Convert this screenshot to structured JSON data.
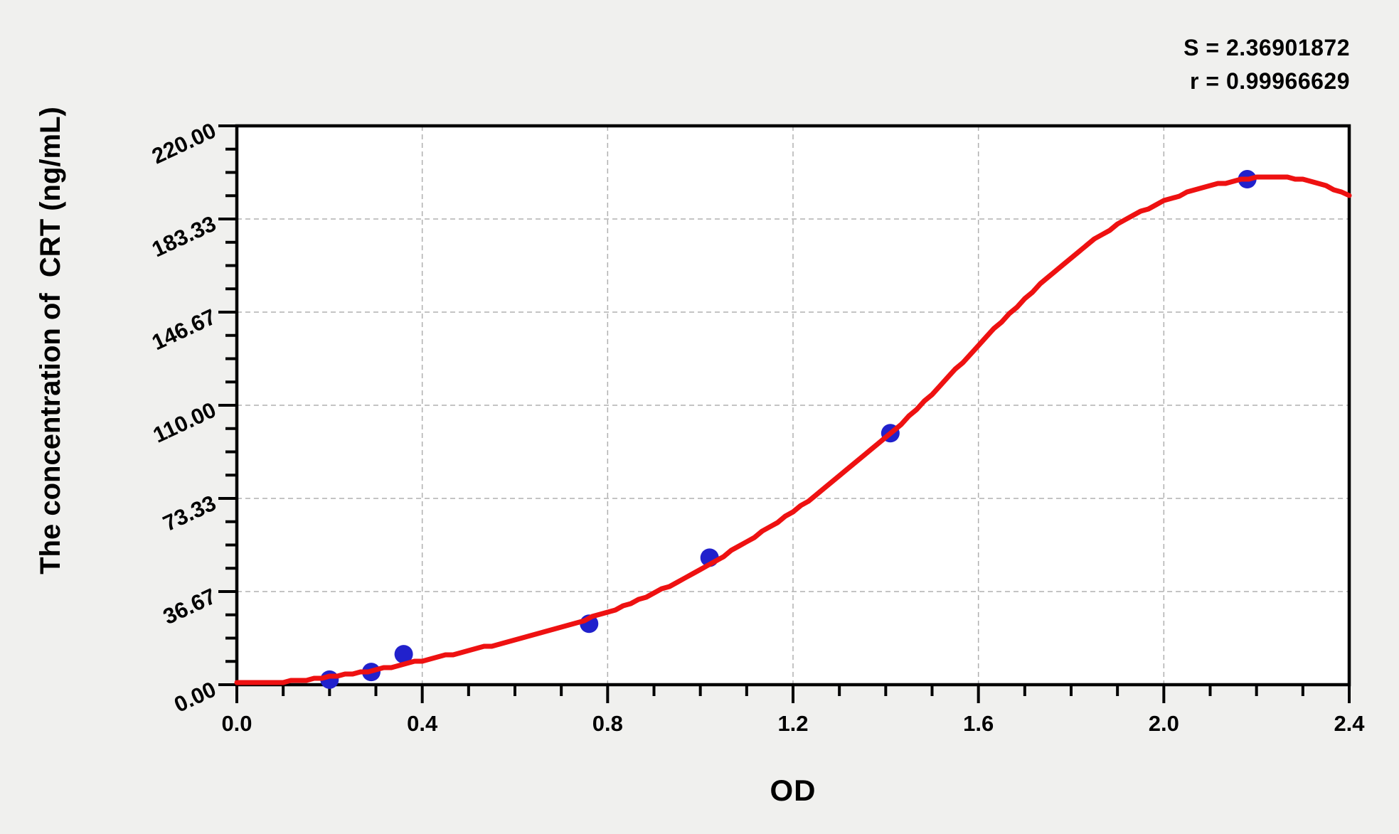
{
  "page": {
    "background_color": "#f0f0ee",
    "plot_background_color": "#ffffff"
  },
  "stats": {
    "s_line": "S = 2.36901872",
    "r_line": "r = 0.99966629"
  },
  "chart_data": {
    "type": "scatter",
    "title": "",
    "xlabel": "OD",
    "ylabel": "The concentration of  CRT (ng/mL)",
    "xlim": [
      0.0,
      2.4
    ],
    "ylim": [
      0.0,
      220.0
    ],
    "x_major_ticks": [
      0.0,
      0.4,
      0.8,
      1.2,
      1.6,
      2.0,
      2.4
    ],
    "x_tick_labels": [
      "0.0",
      "0.4",
      "0.8",
      "1.2",
      "1.6",
      "2.0",
      "2.4"
    ],
    "x_minor_per_major": 3,
    "y_major_ticks": [
      0.0,
      36.67,
      73.33,
      110.0,
      146.67,
      183.33,
      220.0
    ],
    "y_tick_labels": [
      "0.00",
      "36.67",
      "73.33",
      "110.00",
      "146.67",
      "183.33",
      "220.00"
    ],
    "y_minor_per_major": 3,
    "grid": {
      "show": true,
      "style": "dashed",
      "color": "#b0b0b0",
      "at": "major-ticks"
    },
    "legend_position": "none",
    "annotations": [
      "S = 2.36901872",
      "r = 0.99966629"
    ],
    "series": [
      {
        "name": "standard-points",
        "type": "scatter",
        "color": "#2121cc",
        "marker": "circle",
        "points": [
          [
            0.2,
            2
          ],
          [
            0.29,
            5
          ],
          [
            0.36,
            12
          ],
          [
            0.76,
            24
          ],
          [
            1.02,
            50
          ],
          [
            1.41,
            99
          ],
          [
            2.18,
            199
          ]
        ]
      },
      {
        "name": "fitted-curve",
        "type": "line",
        "color": "#ee1111",
        "points": [
          [
            0.0,
            0.5
          ],
          [
            0.05,
            0.8
          ],
          [
            0.1,
            1.2
          ],
          [
            0.15,
            2.0
          ],
          [
            0.2,
            3.0
          ],
          [
            0.25,
            4.2
          ],
          [
            0.3,
            5.8
          ],
          [
            0.35,
            7.6
          ],
          [
            0.4,
            9.5
          ],
          [
            0.45,
            11.5
          ],
          [
            0.5,
            13.5
          ],
          [
            0.55,
            15.5
          ],
          [
            0.6,
            17.8
          ],
          [
            0.65,
            20.2
          ],
          [
            0.7,
            22.8
          ],
          [
            0.75,
            25.6
          ],
          [
            0.8,
            28.6
          ],
          [
            0.85,
            32.0
          ],
          [
            0.9,
            36.0
          ],
          [
            0.95,
            40.5
          ],
          [
            1.0,
            45.5
          ],
          [
            1.05,
            50.8
          ],
          [
            1.1,
            56.4
          ],
          [
            1.15,
            62.0
          ],
          [
            1.2,
            68.0
          ],
          [
            1.25,
            74.8
          ],
          [
            1.3,
            82.0
          ],
          [
            1.35,
            89.5
          ],
          [
            1.4,
            97.2
          ],
          [
            1.45,
            105.5
          ],
          [
            1.5,
            114.5
          ],
          [
            1.55,
            124.0
          ],
          [
            1.6,
            133.5
          ],
          [
            1.65,
            143.0
          ],
          [
            1.7,
            152.0
          ],
          [
            1.75,
            160.5
          ],
          [
            1.8,
            168.3
          ],
          [
            1.85,
            175.2
          ],
          [
            1.9,
            181.2
          ],
          [
            1.95,
            186.2
          ],
          [
            2.0,
            190.3
          ],
          [
            2.05,
            193.7
          ],
          [
            2.1,
            196.4
          ],
          [
            2.15,
            198.4
          ],
          [
            2.2,
            199.6
          ],
          [
            2.25,
            199.9
          ],
          [
            2.3,
            199.0
          ],
          [
            2.35,
            196.5
          ],
          [
            2.4,
            192.5
          ]
        ]
      }
    ]
  },
  "colors": {
    "axis": "#000000",
    "curve_red": "#ee1111",
    "point_blue": "#2121cc",
    "grid_gray": "#b0b0b0"
  }
}
